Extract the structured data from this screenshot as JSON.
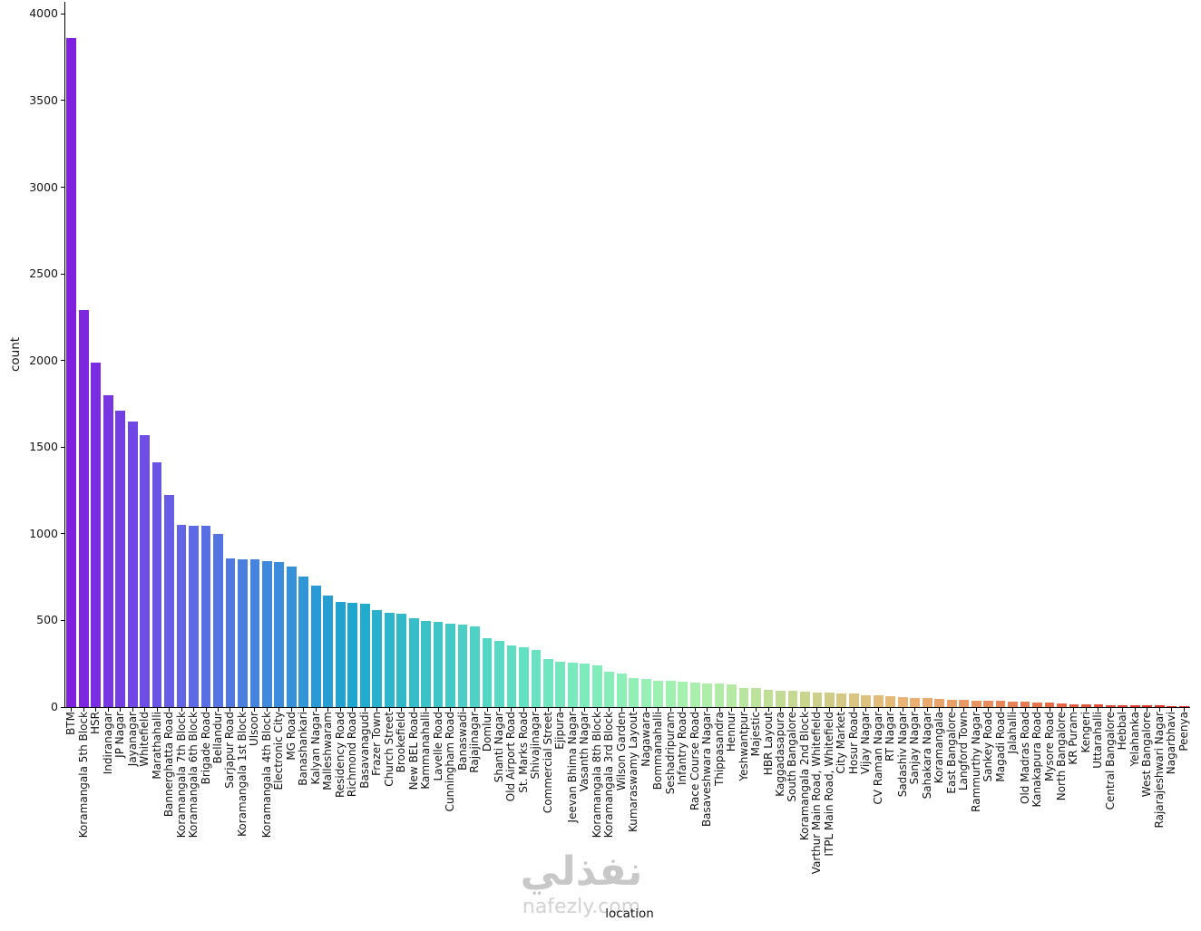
{
  "watermark": {
    "arabic": "نفذلي",
    "site": "nafezly.com"
  },
  "chart_data": {
    "type": "bar",
    "title": "",
    "xlabel": "location",
    "ylabel": "count",
    "ylim": [
      0,
      4070
    ],
    "yticks": [
      0,
      500,
      1000,
      1500,
      2000,
      2500,
      3000,
      3500,
      4000
    ],
    "grid": false,
    "legend": "none",
    "palette": {
      "name": "rainbow",
      "desaturation": 0.75,
      "start_hex": "#8224DC",
      "mid_hex": "#7FD9A8",
      "end_hex": "#DF2020"
    },
    "categories": [
      "BTM",
      "Koramangala 5th Block",
      "HSR",
      "Indiranagar",
      "JP Nagar",
      "Jayanagar",
      "Whitefield",
      "Marathahalli",
      "Bannerghatta Road",
      "Koramangala 7th Block",
      "Koramangala 6th Block",
      "Brigade Road",
      "Bellandur",
      "Sarjapur Road",
      "Koramangala 1st Block",
      "Ulsoor",
      "Koramangala 4th Block",
      "Electronic City",
      "MG Road",
      "Banashankari",
      "Kalyan Nagar",
      "Malleshwaram",
      "Residency Road",
      "Richmond Road",
      "Basavanagudi",
      "Frazer Town",
      "Church Street",
      "Brookefield",
      "New BEL Road",
      "Kammanahalli",
      "Lavelle Road",
      "Cunningham Road",
      "Banaswadi",
      "Rajajinagar",
      "Domlur",
      "Shanti Nagar",
      "Old Airport Road",
      "St. Marks Road",
      "Shivajinagar",
      "Commercial Street",
      "Ejipura",
      "Jeevan Bhima Nagar",
      "Vasanth Nagar",
      "Koramangala 8th Block",
      "Koramangala 3rd Block",
      "Wilson Garden",
      "Kumaraswamy Layout",
      "Nagawara",
      "Bommanahalli",
      "Seshadripuram",
      "Infantry Road",
      "Race Course Road",
      "Basaveshwara Nagar",
      "Thippasandra",
      "Hennur",
      "Yeshwantpur",
      "Majestic",
      "HBR Layout",
      "Kaggadasapura",
      "South Bangalore",
      "Koramangala 2nd Block",
      "Varthur Main Road, Whitefield",
      "ITPL Main Road, Whitefield",
      "City Market",
      "Hosur Road",
      "Vijay Nagar",
      "CV Raman Nagar",
      "RT Nagar",
      "Sadashiv Nagar",
      "Sanjay Nagar",
      "Sahakara Nagar",
      "Koramangala",
      "East Bangalore",
      "Langford Town",
      "Rammurthy Nagar",
      "Sankey Road",
      "Magadi Road",
      "Jalahalli",
      "Old Madras Road",
      "Kanakapura Road",
      "Mysore Road",
      "North Bangalore",
      "KR Puram",
      "Kengeri",
      "Uttarahalli",
      "Central Bangalore",
      "Hebbal",
      "Yelahanka",
      "West Bangalore",
      "Rajarajeshwari Nagar",
      "Nagarbhavi",
      "Peenya"
    ],
    "values": [
      3860,
      2290,
      1990,
      1800,
      1710,
      1650,
      1570,
      1410,
      1225,
      1050,
      1048,
      1046,
      1000,
      858,
      855,
      852,
      842,
      838,
      810,
      752,
      700,
      642,
      605,
      602,
      598,
      560,
      545,
      540,
      512,
      498,
      492,
      482,
      475,
      465,
      400,
      382,
      356,
      345,
      330,
      276,
      262,
      256,
      250,
      240,
      202,
      192,
      166,
      160,
      152,
      150,
      146,
      141,
      137,
      134,
      130,
      112,
      110,
      101,
      96,
      92,
      90,
      86,
      82,
      80,
      76,
      69,
      66,
      63,
      58,
      53,
      50,
      46,
      43,
      41,
      38,
      36,
      35,
      32,
      30,
      26,
      24,
      21,
      18,
      16,
      14,
      13,
      12,
      10,
      9,
      8,
      6,
      5
    ]
  }
}
